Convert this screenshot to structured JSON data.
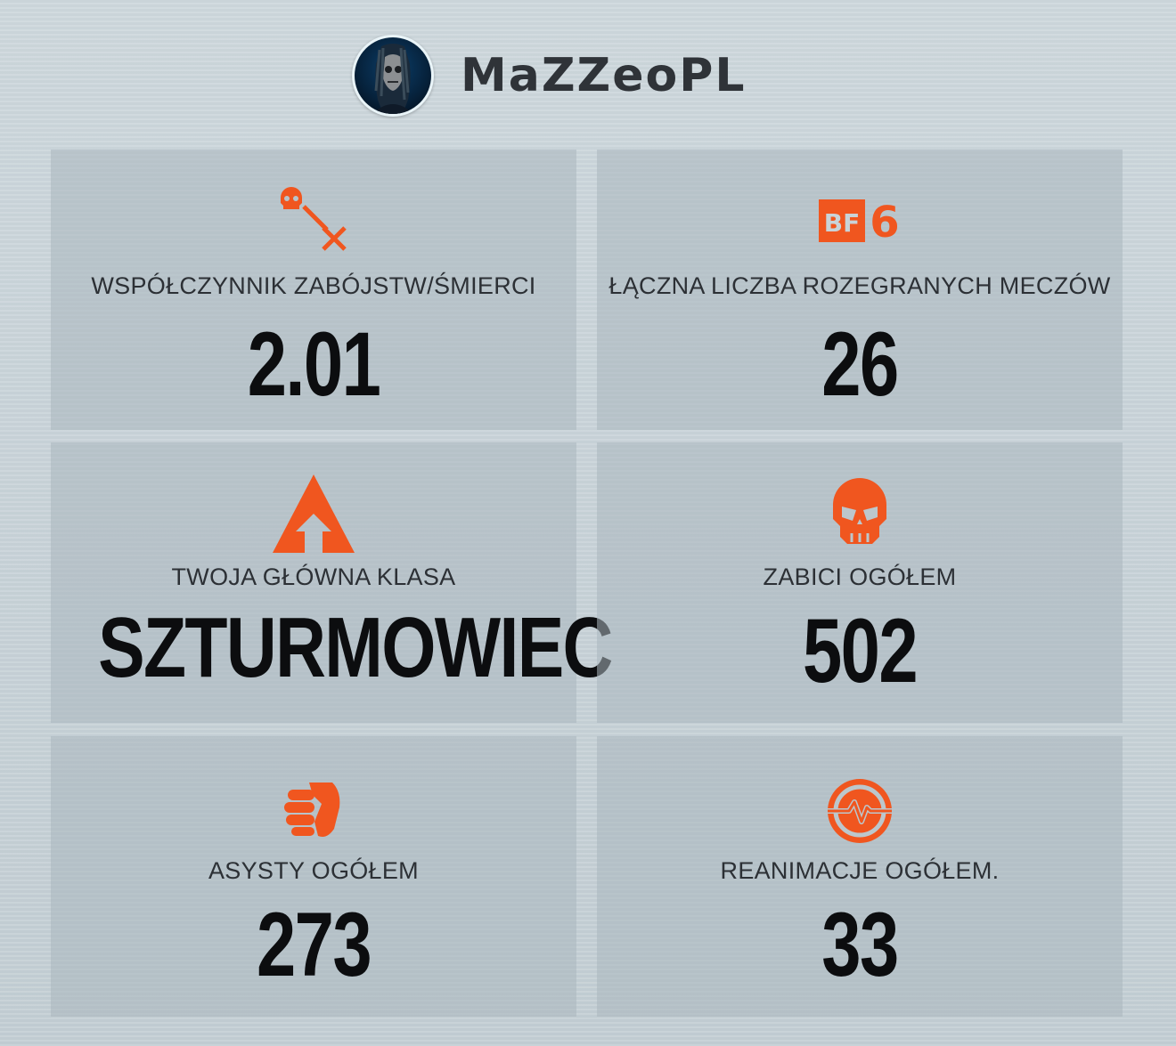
{
  "profile": {
    "username": "MaZZeoPL",
    "avatar_icon": "avatar-portrait"
  },
  "colors": {
    "accent": "#f0561f",
    "text": "#0c0d0f",
    "label": "#2c3035"
  },
  "stats": [
    {
      "icon": "skull-kd-ratio-icon",
      "label": "WSPÓŁCZYNNIK ZABÓJSTW/ŚMIERCI",
      "value": "2.01"
    },
    {
      "icon": "bf6-logo-icon",
      "label": "ŁĄCZNA LICZBA ROZEGRANYCH MECZÓW",
      "value": "26",
      "logo_text": "BF",
      "logo_number": "6"
    },
    {
      "icon": "assault-class-icon",
      "label": "TWOJA GŁÓWNA KLASA",
      "value": "SZTURMOWIEC"
    },
    {
      "icon": "skull-icon",
      "label": "ZABICI OGÓŁEM",
      "value": "502"
    },
    {
      "icon": "handshake-icon",
      "label": "ASYSTY OGÓŁEM",
      "value": "273"
    },
    {
      "icon": "heartbeat-icon",
      "label": "REANIMACJE OGÓŁEM.",
      "value": "33"
    }
  ]
}
